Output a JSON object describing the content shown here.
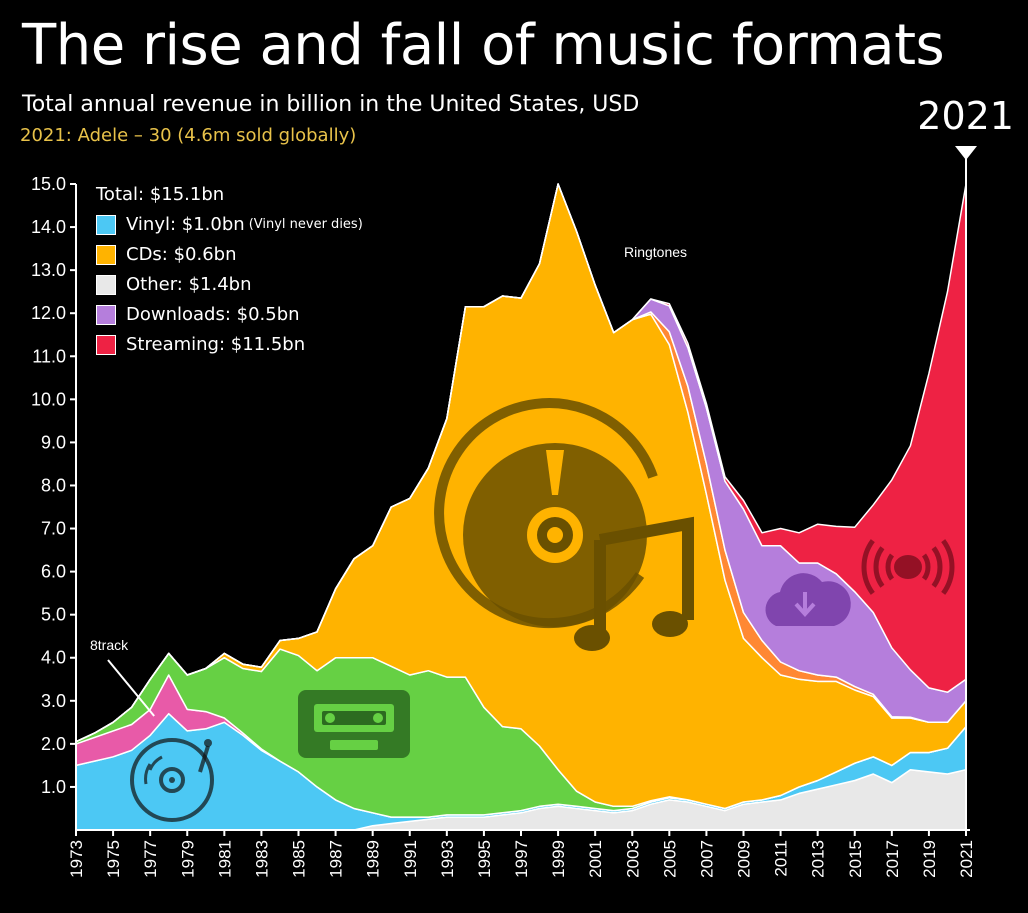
{
  "colors": {
    "vinyl": "#4cc8f4",
    "cds": "#ffb300",
    "other": "#e8e8e8",
    "downloads": "#b57edc",
    "streaming": "#ee2244",
    "eight_track": "#e85aa8",
    "cassette": "#66d044",
    "ringtones": "#ff8833",
    "note_text": "#e8c24a"
  },
  "chart_data": {
    "type": "area",
    "title": "The rise and fall of music formats",
    "subtitle": "Total annual revenue in billion in the United States, USD",
    "note": "2021: Adele – 30 (4.6m sold globally)",
    "current_year_label": "2021",
    "xlabel": "",
    "ylabel": "",
    "ylim": [
      0,
      15
    ],
    "xlim": [
      1973,
      2021
    ],
    "grid": false,
    "stacked": true,
    "legend_position": "top-left",
    "y_ticks": [
      "15.0",
      "14.0",
      "13.0",
      "12.0",
      "11.0",
      "10.0",
      "9.0",
      "8.0",
      "7.0",
      "6.0",
      "5.0",
      "4.0",
      "3.0",
      "2.0",
      "1.0"
    ],
    "x_ticks": [
      "1973",
      "1975",
      "1977",
      "1979",
      "1981",
      "1983",
      "1985",
      "1987",
      "1989",
      "1991",
      "1993",
      "1995",
      "1997",
      "1999",
      "2001",
      "2003",
      "2005",
      "2007",
      "2009",
      "2011",
      "2013",
      "2015",
      "2017",
      "2019",
      "2021"
    ],
    "x": [
      1973,
      1974,
      1975,
      1976,
      1977,
      1978,
      1979,
      1980,
      1981,
      1982,
      1983,
      1984,
      1985,
      1986,
      1987,
      1988,
      1989,
      1990,
      1991,
      1992,
      1993,
      1994,
      1995,
      1996,
      1997,
      1998,
      1999,
      2000,
      2001,
      2002,
      2003,
      2004,
      2005,
      2006,
      2007,
      2008,
      2009,
      2010,
      2011,
      2012,
      2013,
      2014,
      2015,
      2016,
      2017,
      2018,
      2019,
      2020,
      2021
    ],
    "series": [
      {
        "key": "other",
        "values": [
          0,
          0,
          0,
          0,
          0,
          0,
          0,
          0,
          0,
          0,
          0,
          0,
          0,
          0,
          0,
          0,
          0.1,
          0.15,
          0.2,
          0.25,
          0.3,
          0.3,
          0.3,
          0.35,
          0.4,
          0.5,
          0.55,
          0.5,
          0.45,
          0.4,
          0.45,
          0.6,
          0.7,
          0.65,
          0.55,
          0.45,
          0.6,
          0.65,
          0.7,
          0.85,
          0.95,
          1.05,
          1.15,
          1.3,
          1.1,
          1.4,
          1.35,
          1.3,
          1.4
        ]
      },
      {
        "key": "vinyl",
        "values": [
          1.5,
          1.6,
          1.7,
          1.85,
          2.2,
          2.7,
          2.3,
          2.35,
          2.5,
          2.2,
          1.85,
          1.6,
          1.35,
          1.0,
          0.7,
          0.5,
          0.3,
          0.15,
          0.1,
          0.05,
          0.05,
          0.05,
          0.05,
          0.05,
          0.05,
          0.05,
          0.05,
          0.05,
          0.05,
          0.05,
          0.05,
          0.05,
          0.05,
          0.05,
          0.05,
          0.05,
          0.05,
          0.05,
          0.1,
          0.15,
          0.2,
          0.3,
          0.4,
          0.4,
          0.4,
          0.4,
          0.45,
          0.6,
          1.0
        ]
      },
      {
        "key": "eight_track",
        "values": [
          0.5,
          0.55,
          0.6,
          0.6,
          0.6,
          0.9,
          0.5,
          0.4,
          0.1,
          0.05,
          0.03,
          0,
          0,
          0,
          0,
          0,
          0,
          0,
          0,
          0,
          0,
          0,
          0,
          0,
          0,
          0,
          0,
          0,
          0,
          0,
          0,
          0,
          0,
          0,
          0,
          0,
          0,
          0,
          0,
          0,
          0,
          0,
          0,
          0,
          0,
          0,
          0,
          0,
          0
        ]
      },
      {
        "key": "cassette",
        "values": [
          0.05,
          0.1,
          0.2,
          0.4,
          0.7,
          0.5,
          0.8,
          1.0,
          1.4,
          1.5,
          1.8,
          2.6,
          2.7,
          2.7,
          3.3,
          3.5,
          3.6,
          3.5,
          3.3,
          3.4,
          3.2,
          3.2,
          2.5,
          2.0,
          1.9,
          1.4,
          0.8,
          0.35,
          0.15,
          0.1,
          0.05,
          0.03,
          0.02,
          0,
          0,
          0,
          0,
          0,
          0,
          0,
          0,
          0,
          0,
          0,
          0,
          0,
          0,
          0,
          0
        ]
      },
      {
        "key": "cds",
        "values": [
          0,
          0,
          0,
          0,
          0,
          0,
          0,
          0,
          0.1,
          0.1,
          0.1,
          0.2,
          0.4,
          0.9,
          1.6,
          2.3,
          2.6,
          3.7,
          4.1,
          4.7,
          6.0,
          8.6,
          9.3,
          10.0,
          10.0,
          11.2,
          13.6,
          13.0,
          12.0,
          11.0,
          11.3,
          11.3,
          10.5,
          9.0,
          7.2,
          5.3,
          3.8,
          3.3,
          2.8,
          2.5,
          2.3,
          2.1,
          1.7,
          1.4,
          1.1,
          0.8,
          0.7,
          0.6,
          0.6
        ]
      },
      {
        "key": "ringtones",
        "values": [
          0,
          0,
          0,
          0,
          0,
          0,
          0,
          0,
          0,
          0,
          0,
          0,
          0,
          0,
          0,
          0,
          0,
          0,
          0,
          0,
          0,
          0,
          0,
          0,
          0,
          0,
          0,
          0,
          0,
          0,
          0,
          0.05,
          0.3,
          0.6,
          0.7,
          0.7,
          0.6,
          0.4,
          0.3,
          0.2,
          0.15,
          0.1,
          0.08,
          0.05,
          0.03,
          0.02,
          0,
          0,
          0
        ]
      },
      {
        "key": "downloads",
        "values": [
          0,
          0,
          0,
          0,
          0,
          0,
          0,
          0,
          0,
          0,
          0,
          0,
          0,
          0,
          0,
          0,
          0,
          0,
          0,
          0,
          0,
          0,
          0,
          0,
          0,
          0,
          0,
          0,
          0,
          0,
          0,
          0.3,
          0.6,
          0.9,
          1.3,
          1.6,
          2.4,
          2.2,
          2.7,
          2.5,
          2.6,
          2.4,
          2.2,
          1.9,
          1.6,
          1.1,
          0.8,
          0.7,
          0.5
        ]
      },
      {
        "key": "streaming",
        "values": [
          0,
          0,
          0,
          0,
          0,
          0,
          0,
          0,
          0,
          0,
          0,
          0,
          0,
          0,
          0,
          0,
          0,
          0,
          0,
          0,
          0,
          0,
          0,
          0,
          0,
          0,
          0,
          0,
          0,
          0,
          0,
          0,
          0.05,
          0.1,
          0.1,
          0.1,
          0.2,
          0.3,
          0.4,
          0.7,
          0.9,
          1.1,
          1.5,
          2.5,
          3.9,
          5.2,
          7.3,
          9.3,
          11.5
        ]
      }
    ],
    "annotations": [
      {
        "label": "8track",
        "year": 1977
      },
      {
        "label": "Ringtones",
        "year": 2005
      }
    ],
    "legend": {
      "total": "Total: $15.1bn",
      "items": [
        {
          "key": "vinyl",
          "label": "Vinyl: $1.0bn",
          "note": "(Vinyl never dies)"
        },
        {
          "key": "cds",
          "label": "CDs: $0.6bn",
          "note": ""
        },
        {
          "key": "other",
          "label": "Other: $1.4bn",
          "note": ""
        },
        {
          "key": "downloads",
          "label": "Downloads: $0.5bn",
          "note": ""
        },
        {
          "key": "streaming",
          "label": "Streaming: $11.5bn",
          "note": ""
        }
      ]
    }
  },
  "icons": [
    "vinyl-record-icon",
    "cassette-icon",
    "cd-music-icon",
    "cloud-download-icon",
    "streaming-broadcast-icon",
    "marker-triangle-icon"
  ]
}
